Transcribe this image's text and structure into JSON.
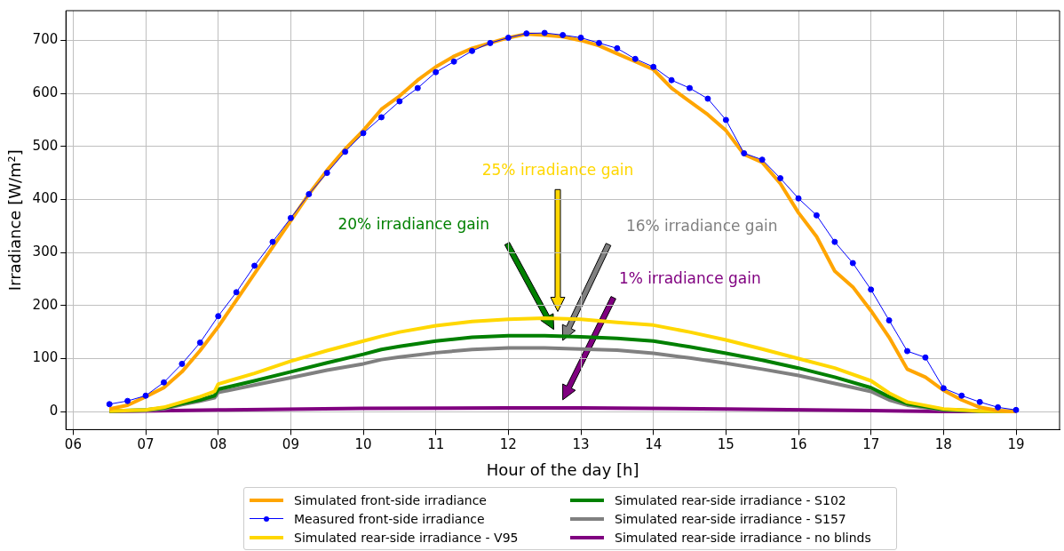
{
  "chart_data": {
    "type": "line",
    "xlabel": "Hour of the day [h]",
    "ylabel": "Irradiance [W/m²]",
    "xlim": [
      5.9,
      19.6
    ],
    "ylim": [
      -34,
      756
    ],
    "xticks": [
      {
        "value": 6,
        "label": "06"
      },
      {
        "value": 7,
        "label": "07"
      },
      {
        "value": 8,
        "label": "08"
      },
      {
        "value": 9,
        "label": "09"
      },
      {
        "value": 10,
        "label": "10"
      },
      {
        "value": 11,
        "label": "11"
      },
      {
        "value": 12,
        "label": "12"
      },
      {
        "value": 13,
        "label": "13"
      },
      {
        "value": 14,
        "label": "14"
      },
      {
        "value": 15,
        "label": "15"
      },
      {
        "value": 16,
        "label": "16"
      },
      {
        "value": 17,
        "label": "17"
      },
      {
        "value": 18,
        "label": "18"
      },
      {
        "value": 19,
        "label": "19"
      }
    ],
    "yticks": [
      0,
      100,
      200,
      300,
      400,
      500,
      600,
      700
    ],
    "grid": true,
    "legend": "bottom",
    "line_style": "solid",
    "series": [
      {
        "name": "Simulated front-side irradiance",
        "color": "#ffa500",
        "marker": "none",
        "x": [
          6.5,
          6.75,
          7,
          7.25,
          7.5,
          7.75,
          8,
          8.25,
          8.5,
          8.75,
          9,
          9.25,
          9.5,
          9.75,
          10,
          10.25,
          10.5,
          10.75,
          11,
          11.25,
          11.5,
          11.75,
          12,
          12.25,
          12.5,
          12.75,
          13,
          13.25,
          13.5,
          13.75,
          14,
          14.25,
          14.5,
          14.75,
          15,
          15.25,
          15.5,
          15.75,
          16,
          16.25,
          16.5,
          16.75,
          17,
          17.25,
          17.5,
          17.75,
          18,
          18.25,
          18.5,
          18.75,
          19
        ],
        "values": [
          5,
          12,
          28,
          45,
          75,
          115,
          160,
          210,
          260,
          310,
          360,
          410,
          455,
          495,
          530,
          570,
          595,
          625,
          650,
          670,
          685,
          695,
          705,
          712,
          710,
          707,
          700,
          690,
          675,
          660,
          645,
          610,
          585,
          560,
          530,
          485,
          470,
          430,
          375,
          330,
          265,
          235,
          190,
          140,
          80,
          65,
          40,
          22,
          8,
          2,
          0
        ]
      },
      {
        "name": "Measured front-side irradiance",
        "color": "#0000ff",
        "marker": "circle",
        "x": [
          6.5,
          6.75,
          7,
          7.25,
          7.5,
          7.75,
          8,
          8.25,
          8.5,
          8.75,
          9,
          9.25,
          9.5,
          9.75,
          10,
          10.25,
          10.5,
          10.75,
          11,
          11.25,
          11.5,
          11.75,
          12,
          12.25,
          12.5,
          12.75,
          13,
          13.25,
          13.5,
          13.75,
          14,
          14.25,
          14.5,
          14.75,
          15,
          15.25,
          15.5,
          15.75,
          16,
          16.25,
          16.5,
          16.75,
          17,
          17.25,
          17.5,
          17.75,
          18,
          18.25,
          18.5,
          18.75,
          19
        ],
        "values": [
          14,
          20,
          30,
          55,
          90,
          130,
          180,
          225,
          275,
          320,
          365,
          410,
          450,
          490,
          525,
          555,
          585,
          610,
          640,
          660,
          680,
          695,
          705,
          713,
          714,
          710,
          705,
          695,
          685,
          665,
          650,
          625,
          610,
          590,
          550,
          487,
          475,
          440,
          402,
          370,
          320,
          280,
          230,
          172,
          114,
          102,
          44,
          30,
          18,
          8,
          3
        ]
      },
      {
        "name": "Simulated rear-side irradiance - V95",
        "color": "#ffd700",
        "marker": "none",
        "x": [
          6.5,
          7,
          7.25,
          7.5,
          7.75,
          7.95,
          8,
          8.5,
          9,
          9.5,
          10,
          10.25,
          10.5,
          11,
          11.5,
          12,
          12.5,
          13,
          13.5,
          14,
          14.5,
          15,
          15.5,
          16,
          16.5,
          17,
          17.25,
          17.5,
          18,
          18.5,
          19
        ],
        "values": [
          1,
          3,
          8,
          18,
          28,
          38,
          52,
          72,
          95,
          115,
          133,
          142,
          150,
          162,
          170,
          174,
          176,
          174,
          168,
          163,
          150,
          135,
          118,
          100,
          82,
          58,
          35,
          18,
          5,
          1,
          0
        ]
      },
      {
        "name": "Simulated rear-side irradiance - S102",
        "color": "#008000",
        "marker": "none",
        "x": [
          6.5,
          7,
          7.25,
          7.5,
          7.75,
          7.95,
          8,
          8.5,
          9,
          9.5,
          10,
          10.25,
          10.5,
          11,
          11.5,
          12,
          12.5,
          13,
          13.5,
          14,
          14.5,
          15,
          15.5,
          16,
          16.5,
          17,
          17.25,
          17.5,
          18,
          18.5,
          19
        ],
        "values": [
          1,
          3,
          7,
          15,
          22,
          30,
          42,
          58,
          75,
          92,
          108,
          117,
          123,
          133,
          140,
          143,
          143,
          141,
          138,
          133,
          122,
          110,
          97,
          82,
          65,
          45,
          28,
          15,
          4,
          1,
          0
        ]
      },
      {
        "name": "Simulated rear-side irradiance - S157",
        "color": "#808080",
        "marker": "none",
        "x": [
          6.5,
          7,
          7.25,
          7.5,
          7.75,
          7.95,
          8,
          8.5,
          9,
          9.5,
          10,
          10.25,
          10.5,
          11,
          11.5,
          12,
          12.5,
          13,
          13.5,
          14,
          14.5,
          15,
          15.5,
          16,
          16.5,
          17,
          17.25,
          17.5,
          18,
          18.5,
          19
        ],
        "values": [
          0,
          2,
          5,
          13,
          20,
          26,
          36,
          50,
          64,
          78,
          90,
          98,
          103,
          111,
          117,
          120,
          120,
          118,
          116,
          110,
          101,
          91,
          80,
          68,
          53,
          38,
          22,
          12,
          3,
          0,
          0
        ]
      },
      {
        "name": "Simulated rear-side irradiance - no blinds",
        "color": "#800080",
        "marker": "none",
        "x": [
          6.5,
          8,
          10,
          12,
          13,
          15,
          17,
          18,
          19
        ],
        "values": [
          0,
          3,
          6,
          7,
          7,
          5,
          2,
          0,
          0
        ]
      }
    ],
    "annotations": [
      "25% irradiance gain",
      "20% irradiance gain",
      "16% irradiance gain",
      "1% irradiance gain"
    ]
  }
}
